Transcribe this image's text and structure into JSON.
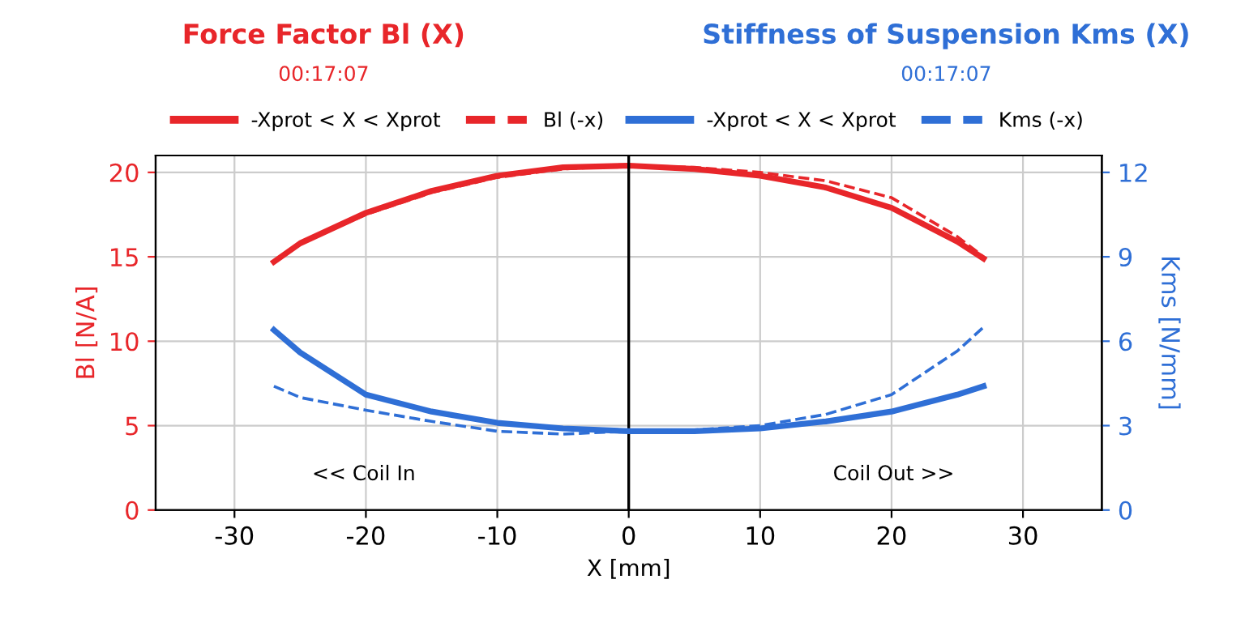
{
  "chart_data": {
    "type": "line",
    "title": "Force Factor Bl (X)",
    "subtitle": "00:17:07",
    "xlabel": "X [mm]",
    "ylabel": "Bl [N/A]",
    "y2label": "Kms [N/mm]",
    "xlim": [
      -36,
      36
    ],
    "xticks": [
      -30,
      -20,
      -10,
      0,
      10,
      20,
      30
    ],
    "ylim": [
      0,
      21
    ],
    "yticks": [
      0,
      5,
      10,
      15,
      20
    ],
    "y2lim": [
      0,
      12.6
    ],
    "y2ticks": [
      0,
      3,
      6,
      9,
      12
    ],
    "grid": true,
    "legend": "top",
    "marker": "none",
    "ref_lines": [
      {
        "axis": "x",
        "value": 0,
        "color": "#000000"
      }
    ],
    "annotations": [
      "Stiffness of Suspension Kms (X)",
      "00:17:07",
      "<< Coil In",
      "Coil Out >>"
    ],
    "series": [
      {
        "name": "-Xprot < X < Xprot",
        "color": "#e8262a",
        "line_style": "solid",
        "x": [
          -27,
          -25,
          -20,
          -15,
          -10,
          -5,
          0,
          5,
          10,
          15,
          20,
          25,
          27
        ],
        "values": [
          14.7,
          15.8,
          17.6,
          18.9,
          19.8,
          20.3,
          20.4,
          20.2,
          19.8,
          19.1,
          17.9,
          15.9,
          14.9
        ]
      },
      {
        "name": "Bl (-x)",
        "color": "#e8262a",
        "line_style": "dashed",
        "x": [
          -27,
          -25,
          -20,
          -15,
          -10,
          -5,
          0,
          5,
          10,
          15,
          20,
          25,
          27
        ],
        "values": [
          14.7,
          15.8,
          17.5,
          18.8,
          19.7,
          20.2,
          20.4,
          20.3,
          20.0,
          19.5,
          18.5,
          16.2,
          15.0
        ]
      },
      {
        "name": "-Xprot < X < Xprot",
        "color": "#2f6fd6",
        "line_style": "solid",
        "axis": "y2",
        "x": [
          -27,
          -25,
          -20,
          -15,
          -10,
          -5,
          0,
          5,
          10,
          15,
          20,
          25,
          27
        ],
        "values": [
          6.4,
          5.6,
          4.1,
          3.5,
          3.1,
          2.9,
          2.8,
          2.8,
          2.9,
          3.15,
          3.5,
          4.1,
          4.4
        ]
      },
      {
        "name": "Kms (-x)",
        "color": "#2f6fd6",
        "line_style": "dashed",
        "axis": "y2",
        "x": [
          -27,
          -25,
          -20,
          -15,
          -10,
          -5,
          0,
          5,
          10,
          15,
          20,
          25,
          27
        ],
        "values": [
          4.4,
          4.0,
          3.55,
          3.15,
          2.8,
          2.7,
          2.8,
          2.85,
          3.0,
          3.4,
          4.1,
          5.65,
          6.5
        ]
      }
    ]
  }
}
